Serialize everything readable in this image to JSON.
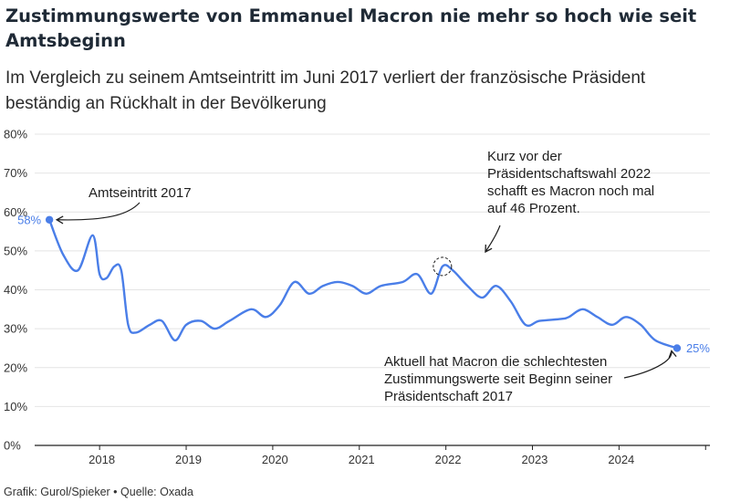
{
  "title": "Zustimmungswerte von Emmanuel Macron nie mehr so hoch wie seit Amtsbeginn",
  "subtitle": "Im Vergleich zu seinem Amtseintritt im Juni 2017 verliert der französische Präsident beständig an Rückhalt in der Bevölkerung",
  "footer": "Grafik: Gurol/Spieker • Quelle: Oxada",
  "colors": {
    "line": "#4a7ee8",
    "grid": "#e4e4e4",
    "axis": "#222222"
  },
  "chart_data": {
    "type": "line",
    "title": "Zustimmungswerte von Emmanuel Macron nie mehr so hoch wie seit Amtsbeginn",
    "xlabel": "",
    "ylabel": "",
    "ylim": [
      0,
      80
    ],
    "xlim": [
      2017.25,
      2025.05
    ],
    "grid": true,
    "x_ticks": [
      "2018",
      "2019",
      "2020",
      "2021",
      "2022",
      "2023",
      "2024"
    ],
    "y_ticks": [
      "0%",
      "10%",
      "20%",
      "30%",
      "40%",
      "50%",
      "60%",
      "70%",
      "80%"
    ],
    "series": [
      {
        "name": "",
        "points": [
          [
            2017.42,
            58
          ],
          [
            2017.58,
            49
          ],
          [
            2017.75,
            45
          ],
          [
            2017.92,
            54
          ],
          [
            2018.0,
            44
          ],
          [
            2018.08,
            43
          ],
          [
            2018.17,
            46
          ],
          [
            2018.25,
            45
          ],
          [
            2018.33,
            31
          ],
          [
            2018.42,
            29
          ],
          [
            2018.58,
            31
          ],
          [
            2018.72,
            32
          ],
          [
            2018.87,
            27
          ],
          [
            2019.0,
            31
          ],
          [
            2019.17,
            32
          ],
          [
            2019.33,
            30
          ],
          [
            2019.5,
            32
          ],
          [
            2019.75,
            35
          ],
          [
            2019.92,
            33
          ],
          [
            2020.08,
            36
          ],
          [
            2020.25,
            42
          ],
          [
            2020.42,
            39
          ],
          [
            2020.58,
            41
          ],
          [
            2020.75,
            42
          ],
          [
            2020.92,
            41
          ],
          [
            2021.08,
            39
          ],
          [
            2021.25,
            41
          ],
          [
            2021.5,
            42
          ],
          [
            2021.67,
            44
          ],
          [
            2021.83,
            39
          ],
          [
            2021.96,
            46
          ],
          [
            2022.08,
            45
          ],
          [
            2022.25,
            41
          ],
          [
            2022.42,
            38
          ],
          [
            2022.58,
            41
          ],
          [
            2022.75,
            37
          ],
          [
            2022.92,
            31
          ],
          [
            2023.08,
            32
          ],
          [
            2023.33,
            32.5
          ],
          [
            2023.42,
            33
          ],
          [
            2023.58,
            35
          ],
          [
            2023.75,
            33
          ],
          [
            2023.92,
            31
          ],
          [
            2024.08,
            33
          ],
          [
            2024.25,
            31
          ],
          [
            2024.42,
            27
          ],
          [
            2024.67,
            25
          ]
        ]
      }
    ],
    "highlights": [
      {
        "x": 2017.42,
        "y": 58,
        "label": "58%"
      },
      {
        "x": 2024.67,
        "y": 25,
        "label": "25%"
      }
    ],
    "annotations": [
      {
        "text": [
          "Amtseintritt 2017"
        ]
      },
      {
        "text": [
          "Kurz vor der",
          "Präsidentschaftswahl 2022",
          "schafft es Macron noch mal",
          "auf 46 Prozent."
        ]
      },
      {
        "text": [
          "Aktuell hat Macron die schlechtesten",
          "Zustimmungswerte seit Beginn seiner",
          "Präsidentschaft 2017"
        ]
      }
    ]
  }
}
